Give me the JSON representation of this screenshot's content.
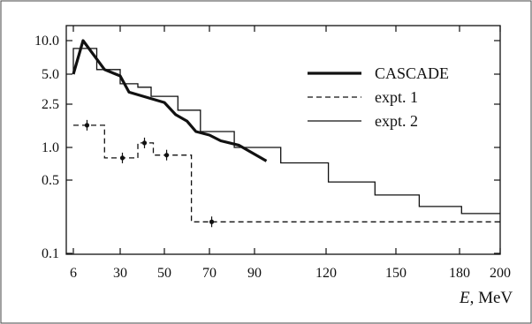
{
  "chart_data": {
    "type": "line",
    "title": "",
    "xlabel_var": "E",
    "xlabel_unit": ", MeV",
    "ylabel": "",
    "x_ticks": [
      6,
      30,
      50,
      70,
      90,
      120,
      150,
      180,
      200
    ],
    "y_ticks": [
      10.0,
      5.0,
      2.5,
      1.0,
      0.5,
      0.1
    ],
    "x_tick_labels": [
      "6",
      "30",
      "50",
      "70",
      "90",
      "120",
      "150",
      "180",
      "200"
    ],
    "y_tick_labels": [
      "10.0",
      "5.0",
      "2.5",
      "1.0",
      "0.5",
      "0.1"
    ],
    "grid": false,
    "legend_position": "top-right",
    "series": [
      {
        "name": "CASCADE",
        "style": "thick-solid",
        "color": "#111111",
        "points": [
          [
            6,
            5.0
          ],
          [
            11,
            10.0
          ],
          [
            22,
            5.5
          ],
          [
            30,
            4.8
          ],
          [
            34,
            3.3
          ],
          [
            50,
            2.6
          ],
          [
            55,
            2.0
          ],
          [
            60,
            1.75
          ],
          [
            64,
            1.4
          ],
          [
            70,
            1.3
          ],
          [
            75,
            1.15
          ],
          [
            83,
            1.05
          ],
          [
            95,
            0.75
          ]
        ]
      },
      {
        "name": "expt. 1",
        "style": "dashed-step",
        "color": "#111111",
        "steps": [
          [
            6,
            1.6
          ],
          [
            22,
            1.6
          ],
          [
            22,
            0.8
          ],
          [
            38,
            0.8
          ],
          [
            38,
            1.1
          ],
          [
            45,
            1.1
          ],
          [
            45,
            0.85
          ],
          [
            62,
            0.85
          ],
          [
            62,
            0.2
          ],
          [
            200,
            0.2
          ]
        ],
        "markers": [
          [
            13,
            1.6
          ],
          [
            31,
            0.8
          ],
          [
            41,
            1.1
          ],
          [
            51,
            0.85
          ],
          [
            71,
            0.2
          ]
        ]
      },
      {
        "name": "expt. 2",
        "style": "thin-step",
        "color": "#111111",
        "steps": [
          [
            6,
            5.0
          ],
          [
            6,
            8.5
          ],
          [
            18,
            8.5
          ],
          [
            18,
            5.5
          ],
          [
            30,
            5.5
          ],
          [
            30,
            4.0
          ],
          [
            38,
            4.0
          ],
          [
            38,
            3.7
          ],
          [
            44,
            3.7
          ],
          [
            44,
            3.0
          ],
          [
            56,
            3.0
          ],
          [
            56,
            2.2
          ],
          [
            66,
            2.2
          ],
          [
            66,
            1.4
          ],
          [
            81,
            1.4
          ],
          [
            81,
            1.0
          ],
          [
            101,
            1.0
          ],
          [
            101,
            0.72
          ],
          [
            121,
            0.72
          ],
          [
            121,
            0.48
          ],
          [
            141,
            0.48
          ],
          [
            141,
            0.36
          ],
          [
            161,
            0.36
          ],
          [
            161,
            0.28
          ],
          [
            181,
            0.28
          ],
          [
            181,
            0.24
          ],
          [
            200,
            0.24
          ]
        ]
      }
    ]
  }
}
